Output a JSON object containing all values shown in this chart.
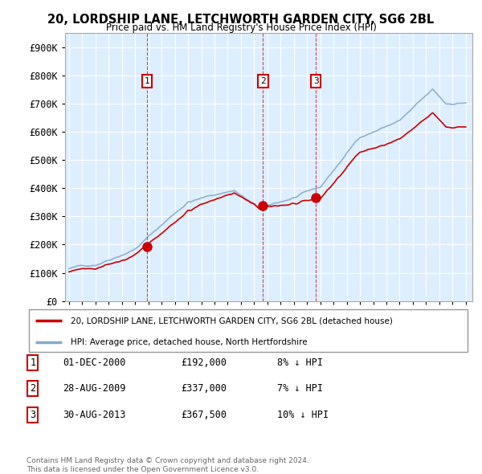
{
  "title_line1": "20, LORDSHIP LANE, LETCHWORTH GARDEN CITY, SG6 2BL",
  "title_line2": "Price paid vs. HM Land Registry's House Price Index (HPI)",
  "ylabel_ticks": [
    "£0",
    "£100K",
    "£200K",
    "£300K",
    "£400K",
    "£500K",
    "£600K",
    "£700K",
    "£800K",
    "£900K"
  ],
  "ytick_values": [
    0,
    100000,
    200000,
    300000,
    400000,
    500000,
    600000,
    700000,
    800000,
    900000
  ],
  "ylim": [
    0,
    950000
  ],
  "xlim_start": 1994.7,
  "xlim_end": 2025.5,
  "sale_dates": [
    2000.917,
    2009.667,
    2013.667
  ],
  "sale_prices": [
    192000,
    337000,
    367500
  ],
  "sale_labels": [
    "1",
    "2",
    "3"
  ],
  "sale_marker_color": "#cc0000",
  "dashed_line_color": "#cc0000",
  "legend_line1": "20, LORDSHIP LANE, LETCHWORTH GARDEN CITY, SG6 2BL (detached house)",
  "legend_line2": "HPI: Average price, detached house, North Hertfordshire",
  "table_rows": [
    {
      "num": "1",
      "date": "01-DEC-2000",
      "price": "£192,000",
      "hpi": "8% ↓ HPI"
    },
    {
      "num": "2",
      "date": "28-AUG-2009",
      "price": "£337,000",
      "hpi": "7% ↓ HPI"
    },
    {
      "num": "3",
      "date": "30-AUG-2013",
      "price": "£367,500",
      "hpi": "10% ↓ HPI"
    }
  ],
  "footnote_line1": "Contains HM Land Registry data © Crown copyright and database right 2024.",
  "footnote_line2": "This data is licensed under the Open Government Licence v3.0.",
  "red_line_color": "#cc0000",
  "blue_line_color": "#88aacc",
  "chart_bg_color": "#ddeeff",
  "background_color": "#ffffff",
  "grid_color": "#ffffff"
}
